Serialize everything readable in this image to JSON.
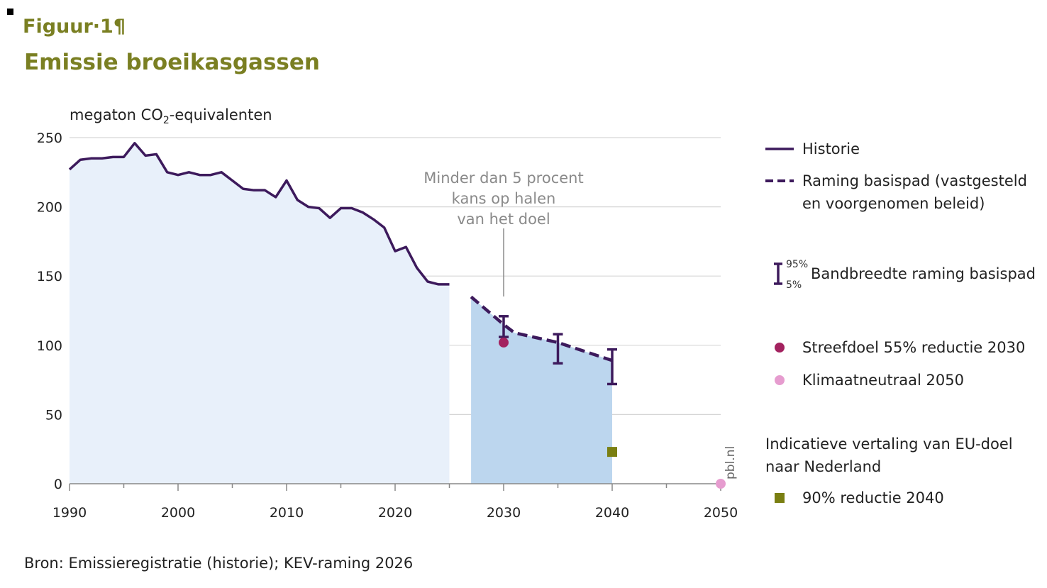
{
  "header": {
    "figure_label": "Figuur·1¶",
    "title": "Emissie broeikasgassen",
    "unit_prefix": "megaton CO",
    "unit_sub": "2",
    "unit_suffix": "-equivalenten"
  },
  "annotation": {
    "lines": [
      "Minder dan 5 procent",
      "kans op halen",
      "van het doel"
    ]
  },
  "legend": {
    "historie": "Historie",
    "raming_line1": "Raming basispad (vastgesteld",
    "raming_line2": "en voorgenomen beleid)",
    "band_pct_high": "95%",
    "band_pct_low": "5%",
    "bandbreedte": "Bandbreedte raming basispad",
    "streefdoel": "Streefdoel 55% reductie 2030",
    "klimaatneutraal": "Klimaatneutraal 2050",
    "eu_note_line1": "Indicatieve vertaling van EU-doel",
    "eu_note_line2": "naar Nederland",
    "reductie_2040": "90% reductie 2040"
  },
  "footer": {
    "source": "Bron: Emissieregistratie (historie); KEV-raming 2026",
    "credit": "pbl.nl"
  },
  "colors": {
    "title": "#7a7f22",
    "line": "#3d1a5c",
    "history_fill": "#e8f0fa",
    "projection_fill": "#bcd6ee",
    "streefdoel": "#a3225f",
    "klimaatneutraal": "#e69ccf",
    "reductie_2040": "#7a7f12",
    "grid": "#d6d6d6"
  },
  "chart_data": {
    "type": "line",
    "xlim": [
      1990,
      2050
    ],
    "ylim": [
      0,
      250
    ],
    "x_ticks": [
      1990,
      2000,
      2010,
      2020,
      2030,
      2040,
      2050
    ],
    "y_ticks": [
      0,
      50,
      100,
      150,
      200,
      250
    ],
    "grid": "horizontal",
    "legend_position": "right",
    "series": [
      {
        "name": "Historie",
        "style": "solid",
        "x": [
          1990,
          1991,
          1992,
          1993,
          1994,
          1995,
          1996,
          1997,
          1998,
          1999,
          2000,
          2001,
          2002,
          2003,
          2004,
          2005,
          2006,
          2007,
          2008,
          2009,
          2010,
          2011,
          2012,
          2013,
          2014,
          2015,
          2016,
          2017,
          2018,
          2019,
          2020,
          2021,
          2022,
          2023,
          2024,
          2025
        ],
        "y": [
          227,
          234,
          235,
          235,
          236,
          236,
          246,
          237,
          238,
          225,
          223,
          225,
          223,
          223,
          225,
          219,
          213,
          212,
          212,
          207,
          219,
          205,
          200,
          199,
          192,
          199,
          199,
          196,
          191,
          185,
          168,
          171,
          156,
          146,
          144,
          144
        ]
      },
      {
        "name": "Raming basispad (vastgesteld en voorgenomen beleid)",
        "style": "dashed",
        "x": [
          2027,
          2030,
          2031,
          2035,
          2040
        ],
        "y": [
          135,
          115,
          109,
          102,
          89
        ]
      }
    ],
    "error_bars": {
      "name": "Bandbreedte raming basispad",
      "x": [
        2030,
        2035,
        2040
      ],
      "low": [
        106,
        87,
        72
      ],
      "high": [
        121,
        108,
        97
      ]
    },
    "points": [
      {
        "name": "Streefdoel 55% reductie 2030",
        "x": 2030,
        "y": 102,
        "marker": "circle"
      },
      {
        "name": "Klimaatneutraal 2050",
        "x": 2050,
        "y": 0,
        "marker": "circle"
      },
      {
        "name": "90% reductie 2040",
        "x": 2040,
        "y": 23,
        "marker": "square"
      }
    ],
    "annotation": {
      "text": "Minder dan 5 procent kans op halen van het doel",
      "x": 2030,
      "y": 135
    }
  }
}
